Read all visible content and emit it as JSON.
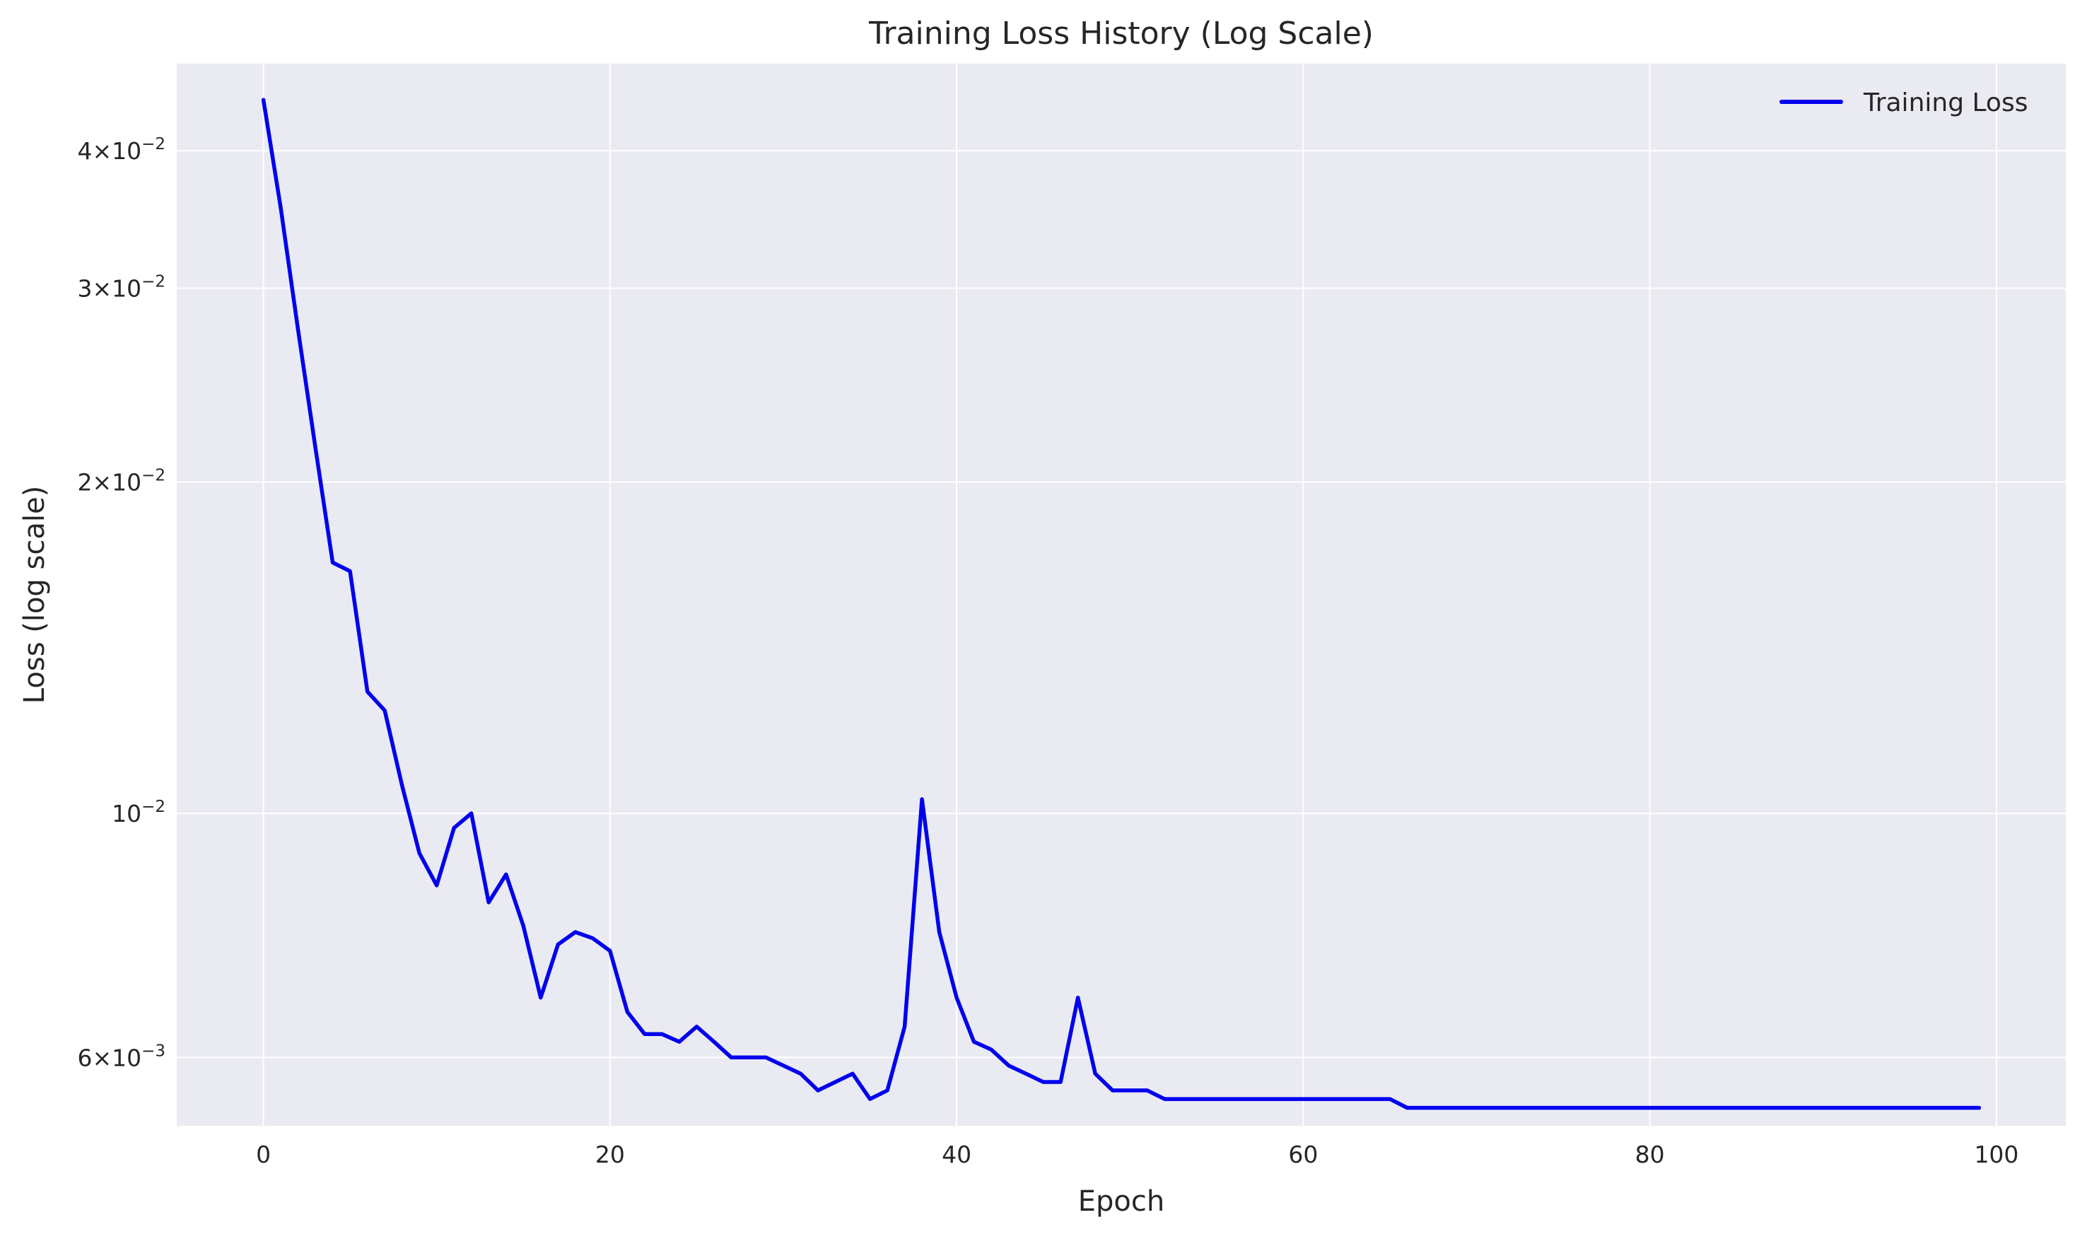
{
  "chart_data": {
    "type": "line",
    "title": "Training Loss History (Log Scale)",
    "xlabel": "Epoch",
    "ylabel": "Loss (log scale)",
    "xlim": [
      -5,
      104
    ],
    "ylim": [
      0.0052,
      0.048
    ],
    "yscale": "log",
    "grid": true,
    "legend_position": "top-right",
    "x_ticks": [
      0,
      20,
      40,
      60,
      80,
      100
    ],
    "x_tick_labels": [
      "0",
      "20",
      "40",
      "60",
      "80",
      "100"
    ],
    "y_ticks": [
      {
        "value": 0.04,
        "mantissa": "4",
        "times": "×",
        "base": "10",
        "exp": "−2"
      },
      {
        "value": 0.03,
        "mantissa": "3",
        "times": "×",
        "base": "10",
        "exp": "−2"
      },
      {
        "value": 0.02,
        "mantissa": "2",
        "times": "×",
        "base": "10",
        "exp": "−2"
      },
      {
        "value": 0.01,
        "mantissa": "",
        "times": "",
        "base": "10",
        "exp": "−2"
      },
      {
        "value": 0.006,
        "mantissa": "6",
        "times": "×",
        "base": "10",
        "exp": "−3"
      }
    ],
    "series": [
      {
        "name": "Training Loss",
        "color": "#0000ee",
        "x": [
          0,
          1,
          2,
          3,
          4,
          5,
          6,
          7,
          8,
          9,
          10,
          11,
          12,
          13,
          14,
          15,
          16,
          17,
          18,
          19,
          20,
          21,
          22,
          23,
          24,
          25,
          26,
          27,
          28,
          29,
          30,
          31,
          32,
          33,
          34,
          35,
          36,
          37,
          38,
          39,
          40,
          41,
          42,
          43,
          44,
          45,
          46,
          47,
          48,
          49,
          50,
          51,
          52,
          53,
          54,
          55,
          56,
          57,
          58,
          59,
          60,
          61,
          62,
          63,
          64,
          65,
          66,
          67,
          68,
          69,
          70,
          71,
          72,
          73,
          74,
          75,
          76,
          77,
          78,
          79,
          80,
          81,
          82,
          83,
          84,
          85,
          86,
          87,
          88,
          89,
          90,
          91,
          92,
          93,
          94,
          95,
          96,
          97,
          98,
          99
        ],
        "values": [
          0.0445,
          0.0355,
          0.0275,
          0.0215,
          0.0169,
          0.0166,
          0.0129,
          0.0124,
          0.0106,
          0.0092,
          0.0086,
          0.0097,
          0.01,
          0.0083,
          0.0088,
          0.0079,
          0.0068,
          0.0076,
          0.0078,
          0.0077,
          0.0075,
          0.0066,
          0.0063,
          0.0063,
          0.0062,
          0.0064,
          0.0062,
          0.006,
          0.006,
          0.006,
          0.0059,
          0.0058,
          0.0056,
          0.0057,
          0.0058,
          0.0055,
          0.0056,
          0.0064,
          0.0103,
          0.0078,
          0.0068,
          0.0062,
          0.0061,
          0.0059,
          0.0058,
          0.0057,
          0.0057,
          0.0068,
          0.0058,
          0.0056,
          0.0056,
          0.0056,
          0.0055,
          0.0055,
          0.0055,
          0.0055,
          0.0055,
          0.0055,
          0.0055,
          0.0055,
          0.0055,
          0.0055,
          0.0055,
          0.0055,
          0.0055,
          0.0055,
          0.0054,
          0.0054,
          0.0054,
          0.0054,
          0.0054,
          0.0054,
          0.0054,
          0.0054,
          0.0054,
          0.0054,
          0.0054,
          0.0054,
          0.0054,
          0.0054,
          0.0054,
          0.0054,
          0.0054,
          0.0054,
          0.0054,
          0.0054,
          0.0054,
          0.0054,
          0.0054,
          0.0054,
          0.0054,
          0.0054,
          0.0054,
          0.0054,
          0.0054,
          0.0054,
          0.0054,
          0.0054,
          0.0054,
          0.0054
        ]
      }
    ]
  }
}
